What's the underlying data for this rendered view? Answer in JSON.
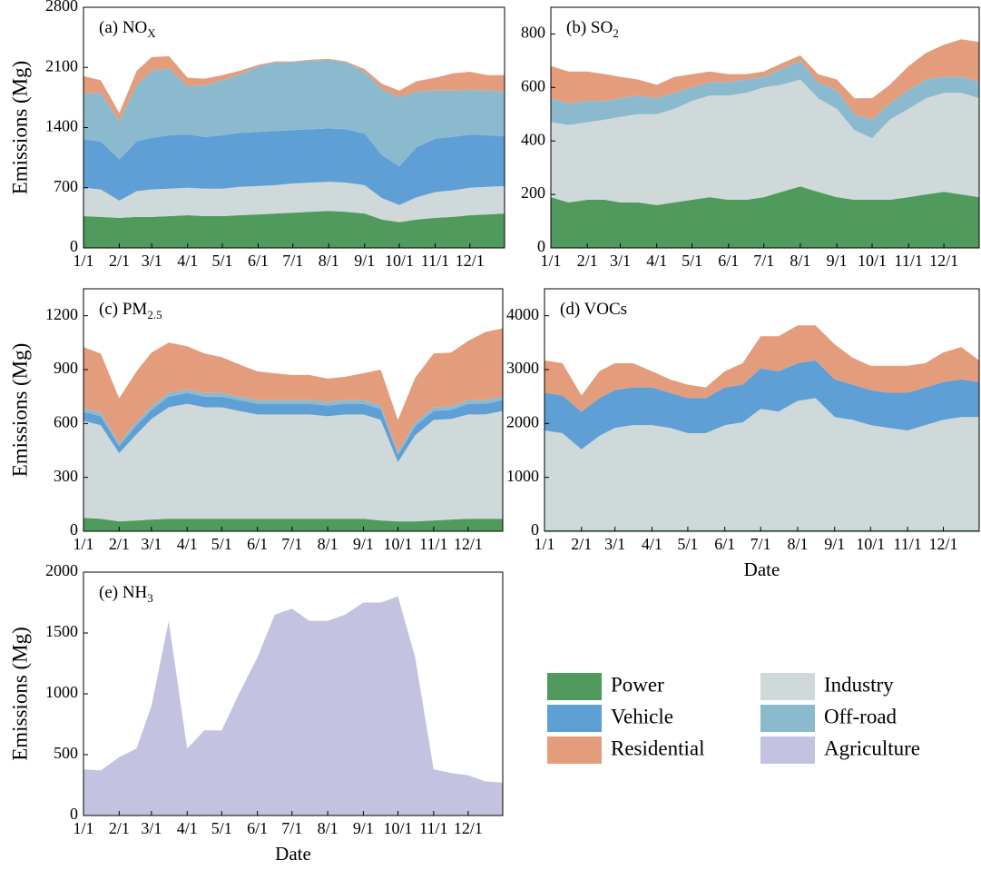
{
  "chart_data": [
    {
      "type": "stacked_area",
      "title": "(a) NO",
      "title_subscript": "X",
      "ylabel": "Emissions (Mg)",
      "x": [
        "1/1",
        "1/16",
        "2/1",
        "2/16",
        "3/1",
        "3/16",
        "4/1",
        "4/16",
        "5/1",
        "5/16",
        "6/1",
        "6/16",
        "7/1",
        "7/16",
        "8/1",
        "8/16",
        "9/1",
        "9/16",
        "10/1",
        "10/16",
        "11/1",
        "11/16",
        "12/1",
        "12/16",
        "12/31"
      ],
      "xticks": [
        "1/1",
        "2/1",
        "3/1",
        "4/1",
        "5/1",
        "6/1",
        "7/1",
        "8/1",
        "9/1",
        "10/1",
        "11/1",
        "12/1"
      ],
      "ylim": [
        0,
        2800
      ],
      "yticks": [
        0,
        700,
        1400,
        2100,
        2800
      ],
      "series": [
        {
          "name": "Power",
          "color": "#4f9a5c",
          "values": [
            370,
            360,
            350,
            360,
            360,
            370,
            380,
            370,
            370,
            380,
            390,
            400,
            410,
            420,
            430,
            420,
            400,
            330,
            300,
            330,
            350,
            360,
            380,
            390,
            400
          ]
        },
        {
          "name": "Industry",
          "color": "#cfd9d9",
          "values": [
            330,
            320,
            200,
            300,
            320,
            320,
            320,
            320,
            320,
            330,
            330,
            330,
            340,
            340,
            340,
            340,
            330,
            250,
            200,
            260,
            300,
            310,
            320,
            320,
            320
          ]
        },
        {
          "name": "Vehicle",
          "color": "#5e9fd6",
          "values": [
            560,
            560,
            480,
            580,
            600,
            620,
            620,
            600,
            620,
            630,
            630,
            630,
            620,
            620,
            620,
            620,
            600,
            500,
            450,
            580,
            620,
            620,
            620,
            600,
            580
          ]
        },
        {
          "name": "Off-road",
          "color": "#8bbacf",
          "values": [
            540,
            560,
            450,
            650,
            780,
            780,
            560,
            600,
            640,
            680,
            760,
            800,
            790,
            800,
            800,
            780,
            720,
            770,
            800,
            650,
            560,
            540,
            520,
            520,
            520
          ]
        },
        {
          "name": "Residential",
          "color": "#e49d7c",
          "values": [
            200,
            150,
            90,
            170,
            160,
            140,
            100,
            80,
            60,
            40,
            20,
            10,
            10,
            10,
            10,
            10,
            30,
            60,
            80,
            120,
            150,
            200,
            210,
            180,
            190
          ]
        }
      ]
    },
    {
      "type": "stacked_area",
      "title": "(b) SO",
      "title_subscript": "2",
      "x": [
        "1/1",
        "1/16",
        "2/1",
        "2/16",
        "3/1",
        "3/16",
        "4/1",
        "4/16",
        "5/1",
        "5/16",
        "6/1",
        "6/16",
        "7/1",
        "7/16",
        "8/1",
        "8/16",
        "9/1",
        "9/16",
        "10/1",
        "10/16",
        "11/1",
        "11/16",
        "12/1",
        "12/16",
        "12/31"
      ],
      "xticks": [
        "1/1",
        "2/1",
        "3/1",
        "4/1",
        "5/1",
        "6/1",
        "7/1",
        "8/1",
        "9/1",
        "10/1",
        "11/1",
        "12/1"
      ],
      "ylim": [
        0,
        900
      ],
      "yticks": [
        0,
        200,
        400,
        600,
        800
      ],
      "series": [
        {
          "name": "Power",
          "color": "#4f9a5c",
          "values": [
            190,
            170,
            180,
            180,
            170,
            170,
            160,
            170,
            180,
            190,
            180,
            180,
            190,
            210,
            230,
            210,
            190,
            180,
            180,
            180,
            190,
            200,
            210,
            200,
            190
          ]
        },
        {
          "name": "Industry",
          "color": "#cfd9d9",
          "values": [
            280,
            290,
            290,
            300,
            320,
            330,
            340,
            350,
            370,
            380,
            390,
            400,
            410,
            400,
            400,
            350,
            330,
            260,
            230,
            300,
            330,
            360,
            370,
            380,
            370
          ]
        },
        {
          "name": "Off-road",
          "color": "#8bbacf",
          "values": [
            90,
            80,
            80,
            70,
            70,
            70,
            60,
            60,
            50,
            50,
            50,
            50,
            40,
            60,
            70,
            60,
            70,
            60,
            70,
            60,
            70,
            70,
            60,
            60,
            60
          ]
        },
        {
          "name": "Residential",
          "color": "#e49d7c",
          "values": [
            120,
            120,
            110,
            100,
            80,
            60,
            50,
            60,
            50,
            40,
            30,
            20,
            20,
            20,
            20,
            30,
            40,
            60,
            80,
            70,
            90,
            100,
            120,
            140,
            150
          ]
        }
      ]
    },
    {
      "type": "stacked_area",
      "title": "(c) PM",
      "title_subscript": "2.5",
      "ylabel": "Emissions (Mg)",
      "x": [
        "1/1",
        "1/16",
        "2/1",
        "2/16",
        "3/1",
        "3/16",
        "4/1",
        "4/16",
        "5/1",
        "5/16",
        "6/1",
        "6/16",
        "7/1",
        "7/16",
        "8/1",
        "8/16",
        "9/1",
        "9/16",
        "10/1",
        "10/16",
        "11/1",
        "11/16",
        "12/1",
        "12/16",
        "12/31"
      ],
      "xticks": [
        "1/1",
        "2/1",
        "3/1",
        "4/1",
        "5/1",
        "6/1",
        "7/1",
        "8/1",
        "9/1",
        "10/1",
        "11/1",
        "12/1"
      ],
      "ylim": [
        0,
        1350
      ],
      "yticks": [
        0,
        300,
        600,
        900,
        1200
      ],
      "series": [
        {
          "name": "Power",
          "color": "#4f9a5c",
          "values": [
            75,
            70,
            55,
            60,
            65,
            70,
            70,
            70,
            70,
            70,
            70,
            70,
            70,
            70,
            70,
            70,
            70,
            60,
            55,
            55,
            60,
            65,
            70,
            70,
            70
          ]
        },
        {
          "name": "Industry",
          "color": "#cfd9d9",
          "values": [
            540,
            520,
            380,
            480,
            560,
            620,
            640,
            620,
            620,
            600,
            580,
            580,
            580,
            580,
            570,
            580,
            580,
            560,
            330,
            480,
            560,
            560,
            580,
            580,
            600
          ]
        },
        {
          "name": "Vehicle",
          "color": "#5e9fd6",
          "values": [
            50,
            50,
            40,
            50,
            50,
            60,
            60,
            60,
            60,
            60,
            60,
            60,
            60,
            60,
            60,
            60,
            60,
            60,
            40,
            50,
            50,
            50,
            60,
            60,
            60
          ]
        },
        {
          "name": "Off-road",
          "color": "#8bbacf",
          "values": [
            20,
            20,
            15,
            20,
            20,
            20,
            20,
            20,
            20,
            20,
            20,
            20,
            20,
            20,
            20,
            20,
            20,
            20,
            15,
            20,
            20,
            20,
            20,
            20,
            20
          ]
        },
        {
          "name": "Residential",
          "color": "#e49d7c",
          "values": [
            340,
            330,
            250,
            280,
            300,
            280,
            240,
            220,
            200,
            180,
            160,
            150,
            140,
            140,
            130,
            130,
            150,
            200,
            180,
            250,
            300,
            300,
            330,
            380,
            380
          ]
        }
      ]
    },
    {
      "type": "stacked_area",
      "title": "(d) VOCs",
      "xlabel": "Date",
      "x": [
        "1/1",
        "1/16",
        "2/1",
        "2/16",
        "3/1",
        "3/16",
        "4/1",
        "4/16",
        "5/1",
        "5/16",
        "6/1",
        "6/16",
        "7/1",
        "7/16",
        "8/1",
        "8/16",
        "9/1",
        "9/16",
        "10/1",
        "10/16",
        "11/1",
        "11/16",
        "12/1",
        "12/16",
        "12/31"
      ],
      "xticks": [
        "1/1",
        "2/1",
        "3/1",
        "4/1",
        "5/1",
        "6/1",
        "7/1",
        "8/1",
        "9/1",
        "10/1",
        "11/1",
        "12/1"
      ],
      "ylim": [
        0,
        4500
      ],
      "yticks": [
        0,
        1000,
        2000,
        3000,
        4000
      ],
      "series": [
        {
          "name": "Power",
          "color": "#4f9a5c",
          "values": [
            20,
            20,
            20,
            20,
            20,
            20,
            20,
            20,
            20,
            20,
            20,
            20,
            20,
            20,
            20,
            20,
            20,
            20,
            20,
            20,
            20,
            20,
            20,
            20,
            20
          ]
        },
        {
          "name": "Industry",
          "color": "#cfd9d9",
          "values": [
            1850,
            1800,
            1500,
            1750,
            1900,
            1950,
            1950,
            1900,
            1800,
            1800,
            1950,
            2000,
            2250,
            2200,
            2400,
            2450,
            2100,
            2050,
            1950,
            1900,
            1850,
            1950,
            2050,
            2100,
            2100
          ]
        },
        {
          "name": "Vehicle",
          "color": "#5e9fd6",
          "values": [
            700,
            700,
            700,
            700,
            700,
            700,
            700,
            650,
            650,
            650,
            700,
            700,
            750,
            750,
            700,
            700,
            700,
            650,
            650,
            650,
            700,
            700,
            700,
            700,
            650
          ]
        },
        {
          "name": "Residential",
          "color": "#e49d7c",
          "values": [
            600,
            600,
            300,
            500,
            500,
            450,
            300,
            250,
            250,
            200,
            300,
            400,
            600,
            650,
            700,
            650,
            650,
            500,
            450,
            500,
            500,
            450,
            550,
            600,
            400
          ]
        }
      ]
    },
    {
      "type": "stacked_area",
      "title": "(e) NH",
      "title_subscript": "3",
      "ylabel": "Emissions (Mg)",
      "xlabel": "Date",
      "x": [
        "1/1",
        "1/16",
        "2/1",
        "2/16",
        "3/1",
        "3/16",
        "4/1",
        "4/16",
        "5/1",
        "5/16",
        "6/1",
        "6/16",
        "7/1",
        "7/16",
        "8/1",
        "8/16",
        "9/1",
        "9/16",
        "10/1",
        "10/16",
        "11/1",
        "11/16",
        "12/1",
        "12/16",
        "12/31"
      ],
      "xticks": [
        "1/1",
        "2/1",
        "3/1",
        "4/1",
        "5/1",
        "6/1",
        "7/1",
        "8/1",
        "9/1",
        "10/1",
        "11/1",
        "12/1"
      ],
      "ylim": [
        0,
        2000
      ],
      "yticks": [
        0,
        500,
        1000,
        1500,
        2000
      ],
      "series": [
        {
          "name": "Agriculture",
          "color": "#c3c3e1",
          "values": [
            380,
            370,
            480,
            550,
            900,
            1600,
            550,
            700,
            700,
            1000,
            1300,
            1650,
            1700,
            1600,
            1600,
            1650,
            1750,
            1750,
            1800,
            1300,
            380,
            350,
            330,
            280,
            270
          ]
        }
      ]
    }
  ]
}
